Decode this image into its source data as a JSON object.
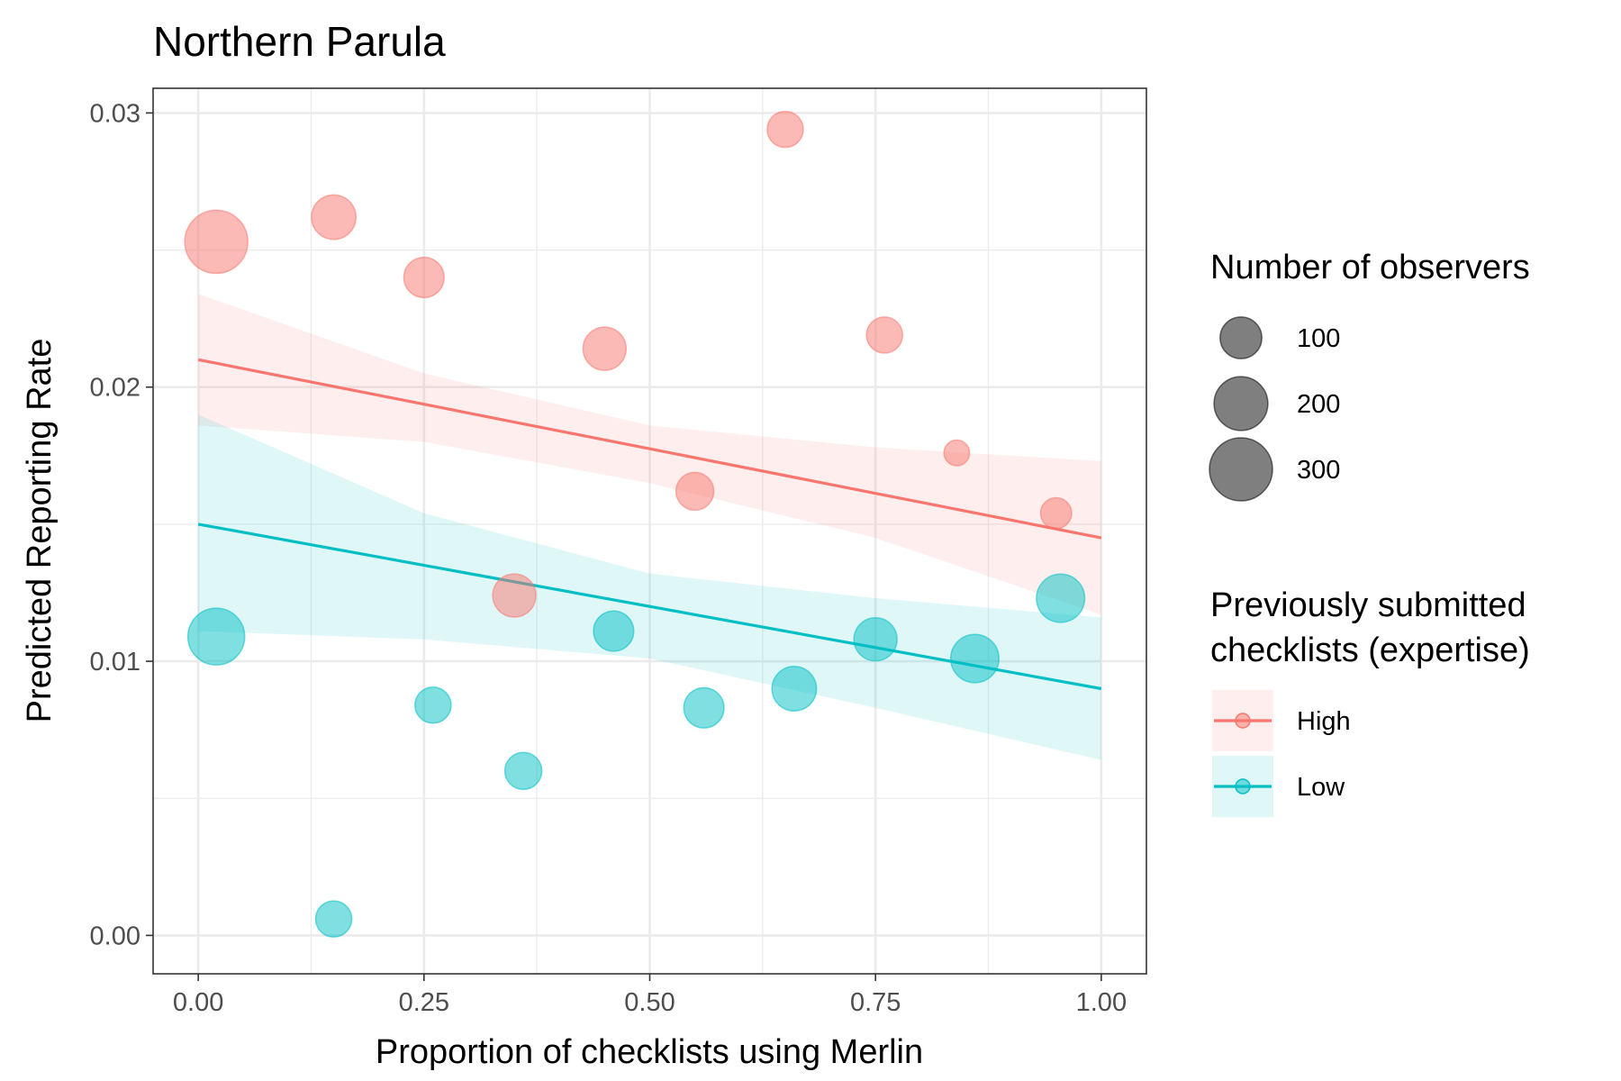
{
  "chart_data": {
    "type": "scatter",
    "title": "Northern Parula",
    "xlabel": "Proportion of checklists using Merlin",
    "ylabel": "Predicted Reporting Rate",
    "xlim": [
      -0.1,
      2.1
    ],
    "ylim": [
      -0.0014,
      0.0309
    ],
    "x_ticks": [
      0,
      0.25,
      0.5,
      0.75,
      1
    ],
    "x_tick_labels": [
      "0.00",
      "0.25",
      "0.50",
      "0.75",
      "1.00"
    ],
    "y_ticks": [
      0,
      0.01,
      0.02,
      0.03
    ],
    "y_tick_labels": [
      "0.00",
      "0.01",
      "0.02",
      "0.03"
    ],
    "grid": true,
    "legend_placement": "right",
    "size_legend": {
      "title": "Number of observers",
      "entries": [
        {
          "label": "100",
          "value": 100
        },
        {
          "label": "200",
          "value": 200
        },
        {
          "label": "300",
          "value": 300
        }
      ]
    },
    "color_legend": {
      "title": [
        "Previously submitted",
        "checklists (expertise)"
      ],
      "entries": [
        {
          "label": "High",
          "color": "#F8766D"
        },
        {
          "label": "Low",
          "color": "#00BFC4"
        }
      ]
    },
    "series": [
      {
        "name": "High",
        "color": "#F8766D",
        "points": [
          {
            "x": 0.02,
            "y": 0.0253,
            "n": 300
          },
          {
            "x": 0.15,
            "y": 0.0262,
            "n": 120
          },
          {
            "x": 0.25,
            "y": 0.024,
            "n": 90
          },
          {
            "x": 0.35,
            "y": 0.0124,
            "n": 110
          },
          {
            "x": 0.45,
            "y": 0.0214,
            "n": 110
          },
          {
            "x": 0.55,
            "y": 0.0162,
            "n": 75
          },
          {
            "x": 0.65,
            "y": 0.0294,
            "n": 65
          },
          {
            "x": 0.76,
            "y": 0.0219,
            "n": 65
          },
          {
            "x": 0.84,
            "y": 0.0176,
            "n": 20
          },
          {
            "x": 0.95,
            "y": 0.0154,
            "n": 40
          }
        ],
        "fit": {
          "x": [
            0,
            1
          ],
          "y": [
            0.021,
            0.0145
          ]
        },
        "band": {
          "x": [
            0,
            0.25,
            0.5,
            0.75,
            1
          ],
          "lower": [
            0.0186,
            0.018,
            0.0165,
            0.0145,
            0.0117
          ],
          "upper": [
            0.0234,
            0.0205,
            0.0186,
            0.0178,
            0.0173
          ]
        }
      },
      {
        "name": "Low",
        "color": "#00BFC4",
        "points": [
          {
            "x": 0.02,
            "y": 0.0109,
            "n": 230
          },
          {
            "x": 0.15,
            "y": 0.0006,
            "n": 65
          },
          {
            "x": 0.26,
            "y": 0.0084,
            "n": 65
          },
          {
            "x": 0.36,
            "y": 0.006,
            "n": 70
          },
          {
            "x": 0.46,
            "y": 0.0111,
            "n": 90
          },
          {
            "x": 0.56,
            "y": 0.0083,
            "n": 90
          },
          {
            "x": 0.66,
            "y": 0.009,
            "n": 120
          },
          {
            "x": 0.75,
            "y": 0.0108,
            "n": 110
          },
          {
            "x": 0.86,
            "y": 0.0101,
            "n": 150
          },
          {
            "x": 0.955,
            "y": 0.0123,
            "n": 150
          }
        ],
        "fit": {
          "x": [
            0,
            1
          ],
          "y": [
            0.015,
            0.009
          ]
        },
        "band": {
          "x": [
            0,
            0.25,
            0.5,
            0.75,
            1
          ],
          "lower": [
            0.0111,
            0.0108,
            0.0101,
            0.0083,
            0.0064
          ],
          "upper": [
            0.019,
            0.0154,
            0.0132,
            0.0123,
            0.0116
          ]
        }
      }
    ]
  }
}
